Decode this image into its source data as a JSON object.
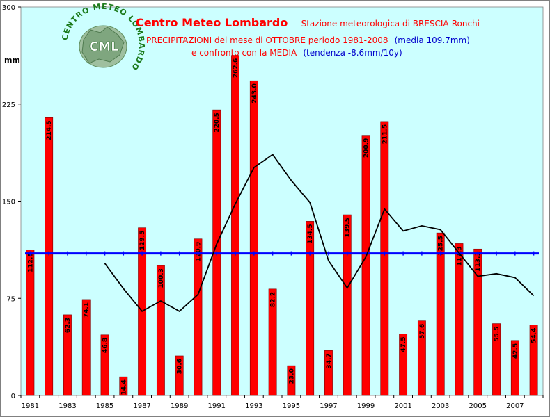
{
  "logo": {
    "ring_text": "CENTRO METEO LOMBARDO",
    "initials": "CML"
  },
  "header": {
    "title_main": "Centro Meteo Lombardo",
    "title_station": "- Stazione meteorologica di BRESCIA-Ronchi",
    "line2_red": "PRECIPITAZIONI del mese di OTTOBRE periodo 1981-2008",
    "line2_blue": "(media 109.7mm)",
    "line3_red": "e confronto con la MEDIA",
    "line3_blue": "(tendenza -8.6mm/10y)"
  },
  "colors": {
    "plot_background": "#ccffff",
    "bar": "#ff0000",
    "mean_line": "#0000ff",
    "trend_line": "#000000",
    "title": "#ff0000",
    "title_blue": "#0000cc"
  },
  "chart_data": {
    "type": "bar",
    "ylabel": "mm",
    "ylim": [
      0,
      300
    ],
    "yticks": [
      0,
      75,
      150,
      225,
      300
    ],
    "grid": false,
    "categories": [
      1981,
      1982,
      1983,
      1984,
      1985,
      1986,
      1987,
      1988,
      1989,
      1990,
      1991,
      1992,
      1993,
      1994,
      1995,
      1996,
      1997,
      1998,
      1999,
      2000,
      2001,
      2002,
      2003,
      2004,
      2005,
      2006,
      2007,
      2008
    ],
    "xtick_labels": [
      "1981",
      "1983",
      "1985",
      "1987",
      "1989",
      "1991",
      "1993",
      "1995",
      "1997",
      "1999",
      "2001",
      "2003",
      "2005",
      "2007"
    ],
    "series": [
      {
        "kind": "bar",
        "values": [
          112.5,
          214.5,
          62.3,
          74.1,
          46.8,
          14.4,
          129.5,
          100.3,
          30.6,
          120.9,
          220.5,
          262.6,
          243.0,
          82.2,
          23.0,
          134.5,
          34.7,
          139.5,
          200.9,
          211.5,
          47.5,
          57.6,
          125.5,
          117.3,
          113.1,
          55.5,
          42.5,
          54.4
        ],
        "labels": [
          "112.5",
          "214.5",
          "62.3",
          "74.1",
          "46.8",
          "14.4",
          "129.5",
          "100.3",
          "30.6",
          "120.9",
          "220.5",
          "262.6",
          "243.0",
          "82.2",
          "23.0",
          "134.5",
          "34.7",
          "139.5",
          "200.9",
          "211.5",
          "47.5",
          "57.6",
          "125.5",
          "117.3",
          "113.1",
          "55.5",
          "42.5",
          "54.4"
        ]
      },
      {
        "kind": "line",
        "role": "mean",
        "values": [
          109.7,
          109.7,
          109.7,
          109.7,
          109.7,
          109.7,
          109.7,
          109.7,
          109.7,
          109.7,
          109.7,
          109.7,
          109.7,
          109.7,
          109.7,
          109.7,
          109.7,
          109.7,
          109.7,
          109.7,
          109.7,
          109.7,
          109.7,
          109.7,
          109.7,
          109.7,
          109.7,
          109.7
        ]
      },
      {
        "kind": "line",
        "role": "moving-average",
        "values": [
          null,
          null,
          null,
          null,
          102.0,
          82.5,
          65.0,
          73.0,
          65.0,
          78.0,
          117.0,
          148.0,
          176.0,
          186.0,
          166.0,
          149.0,
          104.0,
          83.0,
          107.0,
          144.0,
          127.0,
          131.0,
          128.0,
          110.0,
          92.0,
          94.0,
          91.0,
          77.0
        ]
      }
    ]
  }
}
